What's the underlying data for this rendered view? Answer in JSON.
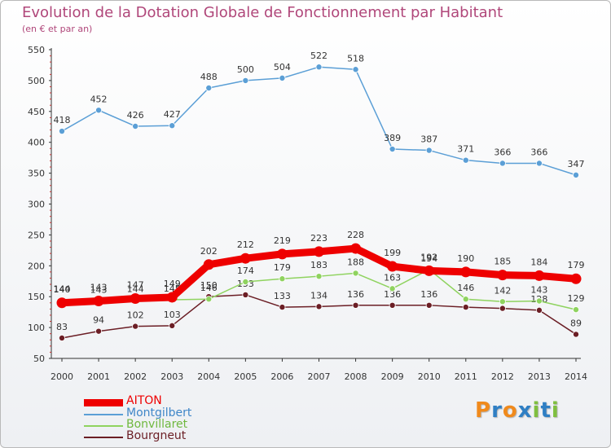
{
  "chart_data": {
    "type": "line",
    "title": "Evolution de la Dotation Globale de Fonctionnement par Habitant",
    "subtitle": "(en € et par an)",
    "xlabel": "",
    "ylabel": "",
    "ylim": [
      50,
      550
    ],
    "yticks": [
      50,
      100,
      150,
      200,
      250,
      300,
      350,
      400,
      450,
      500,
      550
    ],
    "categories": [
      "2000",
      "2001",
      "2002",
      "2003",
      "2004",
      "2005",
      "2006",
      "2007",
      "2008",
      "2009",
      "2010",
      "2011",
      "2012",
      "2013",
      "2014"
    ],
    "series": [
      {
        "name": "Bourgneut",
        "color": "#6b1e25",
        "values": [
          83,
          94,
          102,
          103,
          150,
          153,
          133,
          134,
          136,
          136,
          136,
          133,
          131,
          128,
          89
        ],
        "labels": [
          "83",
          "94",
          "102",
          "103",
          "150",
          "153",
          "133",
          "134",
          "136",
          "136",
          "136",
          "",
          "",
          "128",
          "89"
        ]
      },
      {
        "name": "Bonvillaret",
        "color": "#8fd35f",
        "values": [
          144,
          143,
          144,
          145,
          146,
          174,
          179,
          183,
          188,
          163,
          194,
          146,
          142,
          143,
          129
        ],
        "labels": [
          "144",
          "143",
          "144",
          "145",
          "146",
          "174",
          "179",
          "183",
          "188",
          "163",
          "194",
          "146",
          "142",
          "143",
          "129"
        ]
      },
      {
        "name": "Montgilbert",
        "color": "#5b9fd6",
        "values": [
          418,
          452,
          426,
          427,
          488,
          500,
          504,
          522,
          518,
          389,
          387,
          371,
          366,
          366,
          347
        ],
        "labels": [
          "418",
          "452",
          "426",
          "427",
          "488",
          "500",
          "504",
          "522",
          "518",
          "389",
          "387",
          "371",
          "366",
          "366",
          "347"
        ]
      },
      {
        "name": "AITON",
        "color": "#ee0000",
        "values": [
          140,
          143,
          147,
          149,
          202,
          212,
          219,
          223,
          228,
          199,
          192,
          190,
          185,
          184,
          179
        ],
        "labels": [
          "140",
          "143",
          "147",
          "149",
          "202",
          "212",
          "219",
          "223",
          "228",
          "199",
          "192",
          "190",
          "185",
          "184",
          "179"
        ]
      }
    ],
    "legend": [
      "AITON",
      "Montgilbert",
      "Bonvillaret",
      "Bourgneut"
    ],
    "legend_placement": "bottom-left",
    "grid": false
  },
  "logo": {
    "letters": [
      "P",
      "r",
      "o",
      "x",
      "i",
      "t",
      "i"
    ],
    "colors": [
      "#f08a1c",
      "#2f7fc4",
      "#f08a1c",
      "#2f7fc4",
      "#7fbf3f",
      "#2f7fc4",
      "#7fbf3f"
    ]
  }
}
